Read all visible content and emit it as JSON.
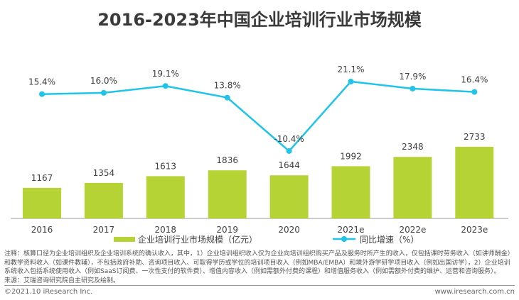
{
  "chart_data": {
    "type": "bar+line",
    "title": "2016-2023年中国企业培训行业市场规模",
    "categories": [
      "2016",
      "2017",
      "2018",
      "2019",
      "2020",
      "2021e",
      "2022e",
      "2023e"
    ],
    "series": [
      {
        "name": "企业培训行业市场规模（亿元）",
        "type": "bar",
        "color": "#b5d334",
        "values": [
          1167,
          1354,
          1613,
          1836,
          1644,
          1992,
          2348,
          2733
        ],
        "labels": [
          "1167",
          "1354",
          "1613",
          "1836",
          "1644",
          "1992",
          "2348",
          "2733"
        ]
      },
      {
        "name": "同比增速（%）",
        "type": "line",
        "color": "#1fc4e8",
        "values": [
          15.4,
          16.0,
          19.1,
          13.8,
          -10.4,
          21.1,
          17.9,
          16.4
        ],
        "labels": [
          "15.4%",
          "16.0%",
          "19.1%",
          "13.8%",
          "-10.4%",
          "21.1%",
          "17.9%",
          "16.4%"
        ]
      }
    ],
    "legend": "bottom"
  },
  "notes": "注释：核算口径为企业培训组织及企业培训系统的确认收入，其中，1）企业培训组织收入仅为企业向培训组织购买产品及服务时所产生的收入，仅包括课时劳务收入（如讲师酬金）和教学资料收入（如课件教辅），不包括政府补助、咨询项目收入、可取得学历或学位的培训项目收入（例如MBA/EMBA）和境外游学研学项目收入（例如出国访学），2）企业培训系统收入包括系统使用收入（例如SaaS订阅费、一次性支付的软件费）、增值内容收入（例如需额外付费的课程）和增值服务收入（例如需额外付费的维护、运营和咨询服务）。",
  "source": "来源：艾瑞咨询研究院自主研究及绘制。",
  "copyright": "©2021.10 iResearch Inc.",
  "website": "www.iresearch.com.cn"
}
